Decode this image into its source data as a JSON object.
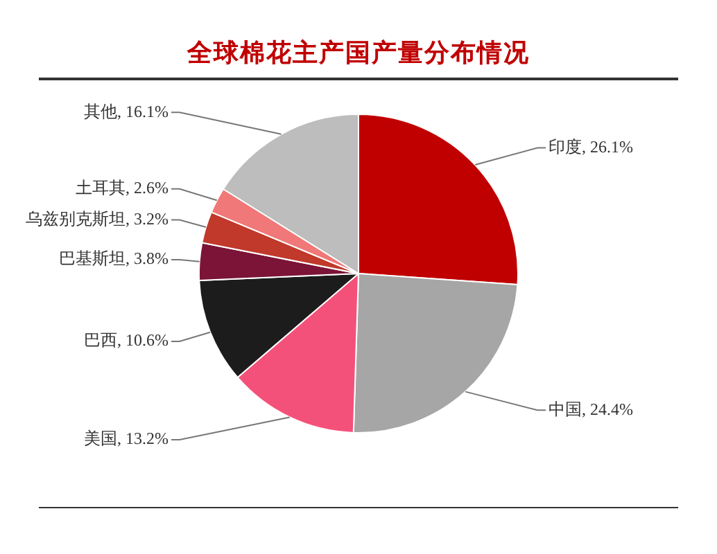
{
  "chart_data": {
    "type": "pie",
    "title": "全球棉花主产国产量分布情况",
    "categories": [
      "印度",
      "中国",
      "美国",
      "巴西",
      "巴基斯坦",
      "乌兹别克斯坦",
      "土耳其",
      "其他"
    ],
    "values": [
      26.1,
      24.4,
      13.2,
      10.6,
      3.8,
      3.2,
      2.6,
      16.1
    ],
    "value_labels": [
      "26.1%",
      "24.4%",
      "13.2%",
      "10.6%",
      "3.8%",
      "3.2%",
      "2.6%",
      "16.1%"
    ],
    "colors": [
      "#c00000",
      "#a6a6a6",
      "#f4517a",
      "#1c1c1c",
      "#7b1436",
      "#c0392b",
      "#f07878",
      "#bdbdbd"
    ],
    "legend": false
  }
}
